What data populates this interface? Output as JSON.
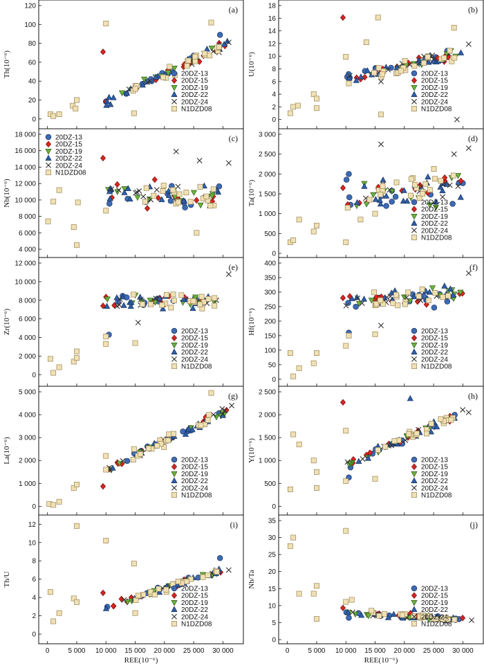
{
  "legend_labels": [
    "20DZ-13",
    "20DZ-15",
    "20DZ-19",
    "20DZ-22",
    "20DZ-24",
    "N1DZD08"
  ],
  "series_styles": [
    {
      "marker": "circle",
      "fill": "#3d6bb3",
      "stroke": "#1d3566"
    },
    {
      "marker": "diamond",
      "fill": "#d7261e",
      "stroke": "#7a1010"
    },
    {
      "marker": "triangle-down",
      "fill": "#6db33f",
      "stroke": "#2f5a14"
    },
    {
      "marker": "triangle-up",
      "fill": "#2f5fa8",
      "stroke": "#17305a"
    },
    {
      "marker": "x",
      "fill": "none",
      "stroke": "#333333"
    },
    {
      "marker": "square",
      "fill": "#f0e1b4",
      "stroke": "#9a8454"
    }
  ],
  "x_axis": {
    "label": "REE(10⁻⁶)",
    "range": [
      -1500,
      33500
    ],
    "ticks": [
      0,
      5000,
      10000,
      15000,
      20000,
      25000,
      30000
    ],
    "tick_labels": [
      "0",
      "5 000",
      "10 000",
      "15 000",
      "20 000",
      "25 000",
      "30 000"
    ]
  },
  "chart_data": [
    {
      "panel_label": "(a)",
      "type": "scatter",
      "ylabel": "Th(10⁻⁶)",
      "ylim": [
        -6,
        120
      ],
      "yticks": [
        0,
        20,
        40,
        60,
        80,
        100,
        120
      ],
      "ytick_labels": [
        "0",
        "20",
        "40",
        "60",
        "80",
        "100",
        "120"
      ],
      "trend": {
        "x": [
          10000,
          31000
        ],
        "y": [
          18,
          80
        ],
        "spread": 5
      },
      "special": {
        "20DZ-13": [
          [
            25000,
            67
          ],
          [
            29500,
            89
          ]
        ],
        "20DZ-15": [
          [
            9500,
            71
          ]
        ],
        "20DZ-24": [
          [
            31000,
            81
          ]
        ],
        "N1DZD08": [
          [
            500,
            5
          ],
          [
            1000,
            3
          ],
          [
            2000,
            5
          ],
          [
            4300,
            14
          ],
          [
            4800,
            11
          ],
          [
            5000,
            20
          ],
          [
            10000,
            101
          ],
          [
            14800,
            6
          ],
          [
            28000,
            102
          ]
        ]
      }
    },
    {
      "panel_label": "(b)",
      "type": "scatter",
      "ylabel": "U(10⁻⁶)",
      "ylim": [
        -0.8,
        18
      ],
      "yticks": [
        0,
        2,
        4,
        6,
        8,
        10,
        12,
        14,
        16,
        18
      ],
      "ytick_labels": [
        "0",
        "2",
        "4",
        "6",
        "8",
        "10",
        "12",
        "14",
        "16",
        "18"
      ],
      "trend": {
        "x": [
          10000,
          30000
        ],
        "y": [
          6.5,
          10.5
        ],
        "spread": 1.0
      },
      "special": {
        "20DZ-15": [
          [
            9500,
            16.1
          ]
        ],
        "20DZ-24": [
          [
            16000,
            6
          ],
          [
            31000,
            11.9
          ],
          [
            29000,
            0
          ]
        ],
        "N1DZD08": [
          [
            500,
            1
          ],
          [
            1000,
            2
          ],
          [
            1800,
            2.2
          ],
          [
            4500,
            4
          ],
          [
            5000,
            1.8
          ],
          [
            10000,
            9.9
          ],
          [
            10500,
            5.7
          ],
          [
            13500,
            12.2
          ],
          [
            15500,
            16.1
          ],
          [
            16000,
            0.8
          ],
          [
            28500,
            14.5
          ],
          [
            5000,
            3.3
          ]
        ]
      }
    },
    {
      "panel_label": "(c)",
      "type": "scatter",
      "ylabel": "Nb(10⁻⁶)",
      "ylim": [
        3500,
        18000
      ],
      "yticks": [
        4000,
        6000,
        8000,
        10000,
        12000,
        14000,
        16000,
        18000
      ],
      "ytick_labels": [
        "4 000",
        "6 000",
        "8 000",
        "10 000",
        "12 000",
        "14 000",
        "16 000",
        "18 000"
      ],
      "trend": {
        "x": [
          10000,
          30000
        ],
        "y": [
          11000,
          10000
        ],
        "spread": 1800
      },
      "special": {
        "20DZ-15": [
          [
            9500,
            15100
          ]
        ],
        "20DZ-24": [
          [
            22000,
            15900
          ],
          [
            26000,
            14800
          ],
          [
            31000,
            14500
          ]
        ],
        "N1DZD08": [
          [
            100,
            7400
          ],
          [
            1000,
            9800
          ],
          [
            2000,
            11200
          ],
          [
            4500,
            6700
          ],
          [
            5000,
            4500
          ],
          [
            5200,
            9700
          ],
          [
            25500,
            6000
          ],
          [
            10000,
            8700
          ]
        ]
      }
    },
    {
      "panel_label": "(d)",
      "type": "scatter",
      "ylabel": "Ta(10⁻⁶)",
      "ylim": [
        0,
        3000
      ],
      "yticks": [
        0,
        500,
        1000,
        1500,
        2000,
        2500,
        3000
      ],
      "ytick_labels": [
        "0",
        "500",
        "1 000",
        "1 500",
        "2 000",
        "2 500",
        "3 000"
      ],
      "trend": {
        "x": [
          10000,
          30000
        ],
        "y": [
          1400,
          1700
        ],
        "spread": 500
      },
      "special": {
        "20DZ-13": [
          [
            10500,
            2000
          ]
        ],
        "20DZ-15": [
          [
            9500,
            1650
          ]
        ],
        "20DZ-24": [
          [
            16000,
            2750
          ],
          [
            28500,
            2500
          ],
          [
            31000,
            2650
          ]
        ],
        "N1DZD08": [
          [
            500,
            280
          ],
          [
            1000,
            330
          ],
          [
            2000,
            850
          ],
          [
            4500,
            550
          ],
          [
            5000,
            700
          ],
          [
            10000,
            280
          ],
          [
            10300,
            1150
          ],
          [
            12500,
            850
          ],
          [
            15000,
            1000
          ]
        ]
      }
    },
    {
      "panel_label": "(e)",
      "type": "scatter",
      "ylabel": "Zr(10⁻⁶)",
      "ylim": [
        -800,
        12000
      ],
      "yticks": [
        0,
        2000,
        4000,
        6000,
        8000,
        10000,
        12000
      ],
      "ytick_labels": [
        "0",
        "2 000",
        "4 000",
        "6 000",
        "8 000",
        "10 000",
        "12 000"
      ],
      "trend": {
        "x": [
          10000,
          30000
        ],
        "y": [
          7800,
          8000
        ],
        "spread": 900
      },
      "special": {
        "20DZ-13": [
          [
            10500,
            4300
          ]
        ],
        "20DZ-15": [
          [
            9500,
            7400
          ]
        ],
        "20DZ-24": [
          [
            15500,
            5600
          ],
          [
            31000,
            10800
          ]
        ],
        "N1DZD08": [
          [
            500,
            1700
          ],
          [
            1000,
            200
          ],
          [
            2000,
            800
          ],
          [
            4500,
            1400
          ],
          [
            5000,
            2500
          ],
          [
            5000,
            1800
          ],
          [
            10000,
            3300
          ],
          [
            10000,
            4100
          ],
          [
            15000,
            3400
          ]
        ]
      }
    },
    {
      "panel_label": "(f)",
      "type": "scatter",
      "ylabel": "Hf(10⁻⁶)",
      "ylim": [
        -10,
        400
      ],
      "yticks": [
        0,
        50,
        100,
        150,
        200,
        250,
        300,
        350,
        400
      ],
      "ytick_labels": [
        "0",
        "50",
        "100",
        "150",
        "200",
        "250",
        "300",
        "350",
        "400"
      ],
      "trend": {
        "x": [
          10000,
          30000
        ],
        "y": [
          270,
          290
        ],
        "spread": 40
      },
      "special": {
        "20DZ-13": [
          [
            10500,
            160
          ]
        ],
        "20DZ-15": [
          [
            9500,
            280
          ]
        ],
        "20DZ-24": [
          [
            16000,
            185
          ],
          [
            31000,
            365
          ]
        ],
        "N1DZD08": [
          [
            500,
            90
          ],
          [
            1000,
            10
          ],
          [
            2000,
            38
          ],
          [
            4500,
            55
          ],
          [
            5000,
            90
          ],
          [
            10000,
            115
          ],
          [
            10500,
            150
          ],
          [
            15000,
            155
          ]
        ]
      }
    },
    {
      "panel_label": "(g)",
      "type": "scatter",
      "ylabel": "La(10⁻⁶)",
      "ylim": [
        -200,
        5000
      ],
      "yticks": [
        0,
        1000,
        2000,
        3000,
        4000,
        5000
      ],
      "ytick_labels": [
        "0",
        "1 000",
        "2 000",
        "3 000",
        "4 000",
        "5 000"
      ],
      "trend": {
        "x": [
          10000,
          31000
        ],
        "y": [
          1600,
          4200
        ],
        "spread": 200
      },
      "special": {
        "20DZ-15": [
          [
            9500,
            870
          ]
        ],
        "20DZ-24": [
          [
            31500,
            4400
          ]
        ],
        "N1DZD08": [
          [
            300,
            100
          ],
          [
            1000,
            60
          ],
          [
            2000,
            200
          ],
          [
            4500,
            800
          ],
          [
            5000,
            950
          ],
          [
            10000,
            1600
          ],
          [
            10000,
            2200
          ],
          [
            28000,
            4950
          ],
          [
            14800,
            2500
          ]
        ]
      }
    },
    {
      "panel_label": "(h)",
      "type": "scatter",
      "ylabel": "Y(10⁻⁶)",
      "ylim": [
        -100,
        2500
      ],
      "yticks": [
        0,
        500,
        1000,
        1500,
        2000,
        2500
      ],
      "ytick_labels": [
        "0",
        "500",
        "1 000",
        "1 500",
        "2 000",
        "2 500"
      ],
      "trend": {
        "x": [
          10000,
          30000
        ],
        "y": [
          900,
          2050
        ],
        "spread": 110
      },
      "special": {
        "20DZ-13": [
          [
            10500,
            630
          ]
        ],
        "20DZ-15": [
          [
            9500,
            2270
          ]
        ],
        "20DZ-22": [
          [
            21000,
            2350
          ]
        ],
        "20DZ-24": [
          [
            31000,
            2050
          ]
        ],
        "N1DZD08": [
          [
            500,
            370
          ],
          [
            1000,
            1570
          ],
          [
            2000,
            1350
          ],
          [
            4500,
            1000
          ],
          [
            5000,
            750
          ],
          [
            5000,
            400
          ],
          [
            10000,
            1650
          ],
          [
            10000,
            550
          ],
          [
            15000,
            600
          ]
        ]
      }
    },
    {
      "panel_label": "(i)",
      "type": "scatter",
      "ylabel": "Th/U",
      "ylim": [
        -0.6,
        12.4
      ],
      "yticks": [
        0,
        2,
        4,
        6,
        8,
        10,
        12
      ],
      "ytick_labels": [
        "0",
        "2",
        "4",
        "6",
        "8",
        "10",
        "12"
      ],
      "trend": {
        "x": [
          10000,
          30000
        ],
        "y": [
          3.0,
          7.0
        ],
        "spread": 0.45
      },
      "special": {
        "20DZ-13": [
          [
            29500,
            8.3
          ]
        ],
        "20DZ-15": [
          [
            9500,
            4.5
          ]
        ],
        "20DZ-24": [
          [
            31000,
            7.0
          ]
        ],
        "N1DZD08": [
          [
            500,
            4.6
          ],
          [
            1000,
            1.4
          ],
          [
            2000,
            2.3
          ],
          [
            4500,
            3.9
          ],
          [
            5000,
            3.5
          ],
          [
            5000,
            11.8
          ],
          [
            10000,
            10.2
          ],
          [
            14800,
            7.7
          ],
          [
            15000,
            2.3
          ]
        ]
      }
    },
    {
      "panel_label": "(j)",
      "type": "scatter",
      "ylabel": "Nb/Ta",
      "ylim": [
        0,
        35
      ],
      "yticks": [
        0,
        5,
        10,
        15,
        20,
        25,
        30,
        35
      ],
      "ytick_labels": [
        "0",
        "5",
        "10",
        "15",
        "20",
        "25",
        "30",
        "35"
      ],
      "trend": {
        "x": [
          10000,
          30000
        ],
        "y": [
          7.8,
          6.0
        ],
        "spread": 0.9
      },
      "special": {
        "20DZ-13": [
          [
            10500,
            6.4
          ]
        ],
        "20DZ-15": [
          [
            9500,
            9.3
          ]
        ],
        "20DZ-24": [
          [
            31500,
            5.7
          ]
        ],
        "N1DZD08": [
          [
            500,
            27.5
          ],
          [
            1000,
            30
          ],
          [
            2000,
            13.5
          ],
          [
            4500,
            13.5
          ],
          [
            5000,
            15.8
          ],
          [
            5000,
            6.1
          ],
          [
            10000,
            32
          ],
          [
            10000,
            11.1
          ],
          [
            11000,
            11.7
          ]
        ]
      }
    }
  ]
}
